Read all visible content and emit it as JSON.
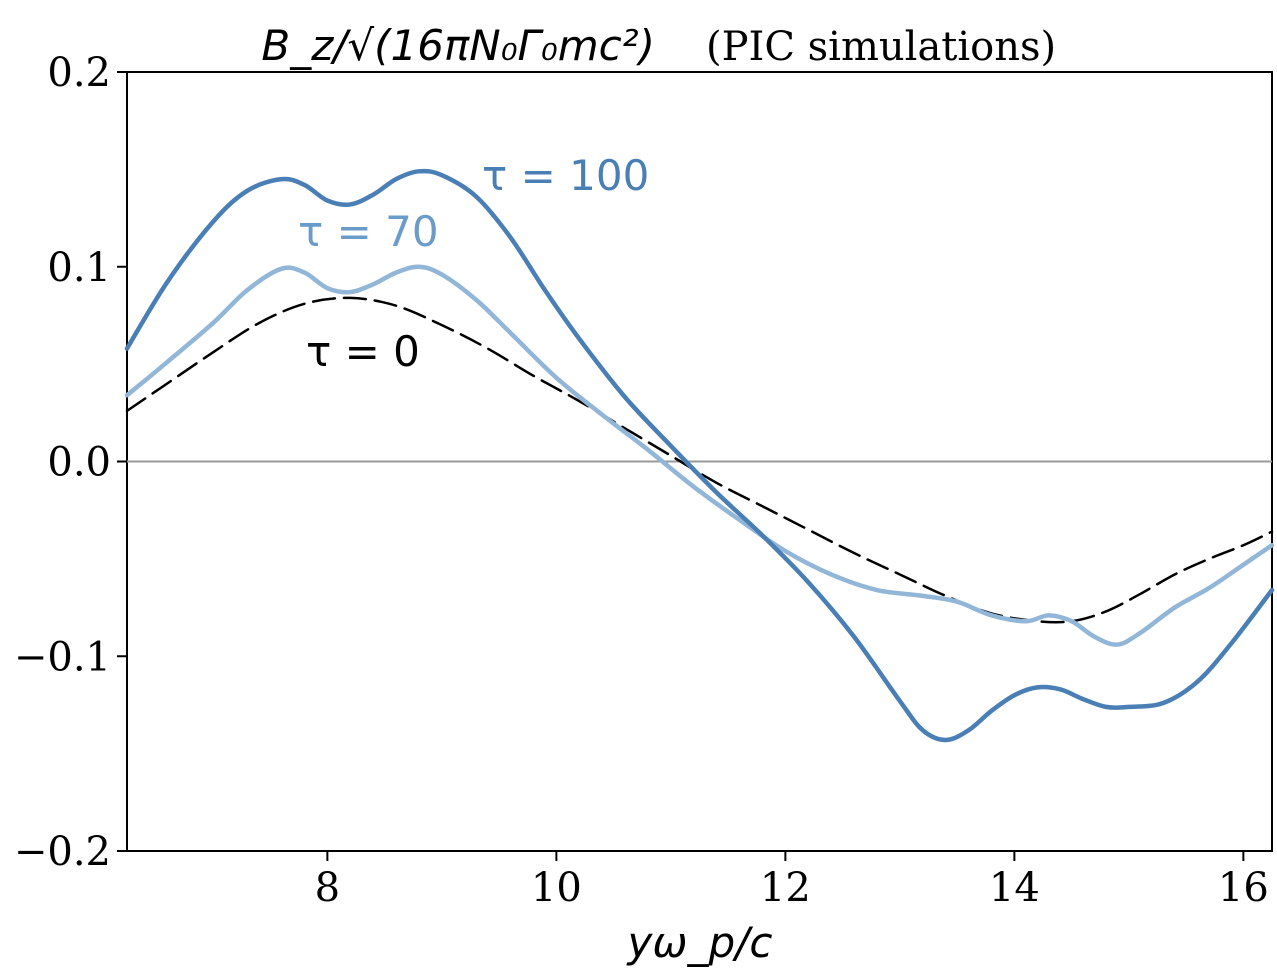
{
  "chart_data": {
    "type": "line",
    "title": {
      "formula": "B_z/√(16πN₀Γ₀mc²)",
      "note": "(PIC simulations)"
    },
    "xlabel": "yω_p/c",
    "ylabel": "",
    "xlim": [
      6.25,
      16.25
    ],
    "ylim": [
      -0.2,
      0.2
    ],
    "xticks": [
      8,
      10,
      12,
      14,
      16
    ],
    "yticks": [
      0.2,
      0.1,
      0.0,
      -0.1,
      -0.2
    ],
    "xtick_labels": [
      "8",
      "10",
      "12",
      "14",
      "16"
    ],
    "ytick_labels": [
      "0.2",
      "0.1",
      "0.0",
      "−0.1",
      "−0.2"
    ],
    "zero_line": true,
    "grid": false,
    "series": [
      {
        "name": "τ = 100",
        "label": "τ = 100",
        "color": "#4a7fb5",
        "style": "solid",
        "x": [
          6.25,
          6.6,
          7.0,
          7.3,
          7.6,
          7.8,
          8.0,
          8.2,
          8.4,
          8.6,
          8.8,
          9.0,
          9.3,
          9.6,
          9.9,
          10.2,
          10.6,
          11.0,
          11.4,
          11.8,
          12.2,
          12.6,
          13.0,
          13.2,
          13.4,
          13.6,
          13.8,
          14.0,
          14.2,
          14.4,
          14.6,
          14.8,
          15.0,
          15.3,
          15.6,
          15.9,
          16.25
        ],
        "y": [
          0.058,
          0.092,
          0.123,
          0.139,
          0.145,
          0.142,
          0.134,
          0.132,
          0.137,
          0.145,
          0.149,
          0.147,
          0.136,
          0.115,
          0.088,
          0.063,
          0.033,
          0.008,
          -0.016,
          -0.038,
          -0.062,
          -0.09,
          -0.123,
          -0.138,
          -0.143,
          -0.138,
          -0.128,
          -0.12,
          -0.116,
          -0.117,
          -0.122,
          -0.126,
          -0.126,
          -0.124,
          -0.113,
          -0.093,
          -0.066
        ]
      },
      {
        "name": "τ = 70",
        "label": "τ = 70",
        "color": "#92b6d8",
        "style": "solid",
        "x": [
          6.25,
          6.6,
          7.0,
          7.3,
          7.6,
          7.8,
          8.0,
          8.2,
          8.4,
          8.6,
          8.8,
          9.0,
          9.3,
          9.6,
          10.0,
          10.4,
          10.8,
          11.2,
          11.6,
          12.0,
          12.4,
          12.8,
          13.2,
          13.5,
          13.8,
          14.1,
          14.3,
          14.5,
          14.7,
          14.9,
          15.1,
          15.4,
          15.7,
          16.0,
          16.25
        ],
        "y": [
          0.034,
          0.051,
          0.071,
          0.088,
          0.099,
          0.097,
          0.089,
          0.087,
          0.091,
          0.097,
          0.1,
          0.096,
          0.083,
          0.066,
          0.043,
          0.024,
          0.006,
          -0.013,
          -0.03,
          -0.046,
          -0.058,
          -0.066,
          -0.069,
          -0.072,
          -0.079,
          -0.082,
          -0.079,
          -0.082,
          -0.09,
          -0.094,
          -0.088,
          -0.075,
          -0.065,
          -0.053,
          -0.043
        ]
      },
      {
        "name": "τ = 0",
        "label": "τ = 0",
        "color": "#000000",
        "style": "dashed",
        "x": [
          6.25,
          6.6,
          7.0,
          7.4,
          7.8,
          8.2,
          8.6,
          9.0,
          9.4,
          9.8,
          10.2,
          10.6,
          11.0,
          11.4,
          11.8,
          12.2,
          12.6,
          13.0,
          13.4,
          13.8,
          14.2,
          14.5,
          14.8,
          15.1,
          15.4,
          15.7,
          16.0,
          16.25
        ],
        "y": [
          0.026,
          0.04,
          0.056,
          0.071,
          0.081,
          0.084,
          0.08,
          0.07,
          0.058,
          0.044,
          0.031,
          0.017,
          0.003,
          -0.011,
          -0.023,
          -0.035,
          -0.047,
          -0.058,
          -0.069,
          -0.078,
          -0.082,
          -0.082,
          -0.077,
          -0.068,
          -0.058,
          -0.05,
          -0.043,
          -0.036
        ]
      }
    ]
  },
  "colors": {
    "axis": "#000000",
    "zero_line": "#999999",
    "background": "#ffffff"
  }
}
